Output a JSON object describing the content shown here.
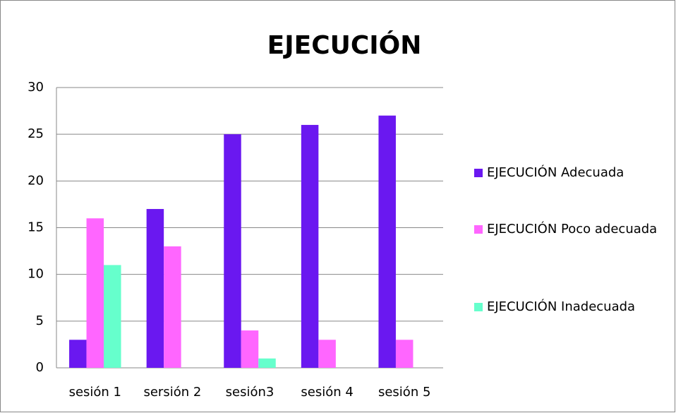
{
  "chart_data": {
    "type": "bar",
    "title": "EJECUCIÓN",
    "categories": [
      "sesión 1",
      "sersión 2",
      "sesión3",
      "sesión 4",
      "sesión 5"
    ],
    "series": [
      {
        "name": "EJECUCIÓN Adecuada",
        "color": "#6a18f0",
        "values": [
          3,
          17,
          25,
          26,
          27
        ]
      },
      {
        "name": "EJECUCIÓN Poco adecuada",
        "color": "#ff66ff",
        "values": [
          16,
          13,
          4,
          3,
          3
        ]
      },
      {
        "name": "EJECUCIÓN Inadecuada",
        "color": "#66ffcc",
        "values": [
          11,
          0,
          1,
          0,
          0
        ]
      }
    ],
    "ylim": [
      0,
      30
    ],
    "yticks": [
      0,
      5,
      10,
      15,
      20,
      25,
      30
    ],
    "grid": true,
    "legend": "right"
  }
}
